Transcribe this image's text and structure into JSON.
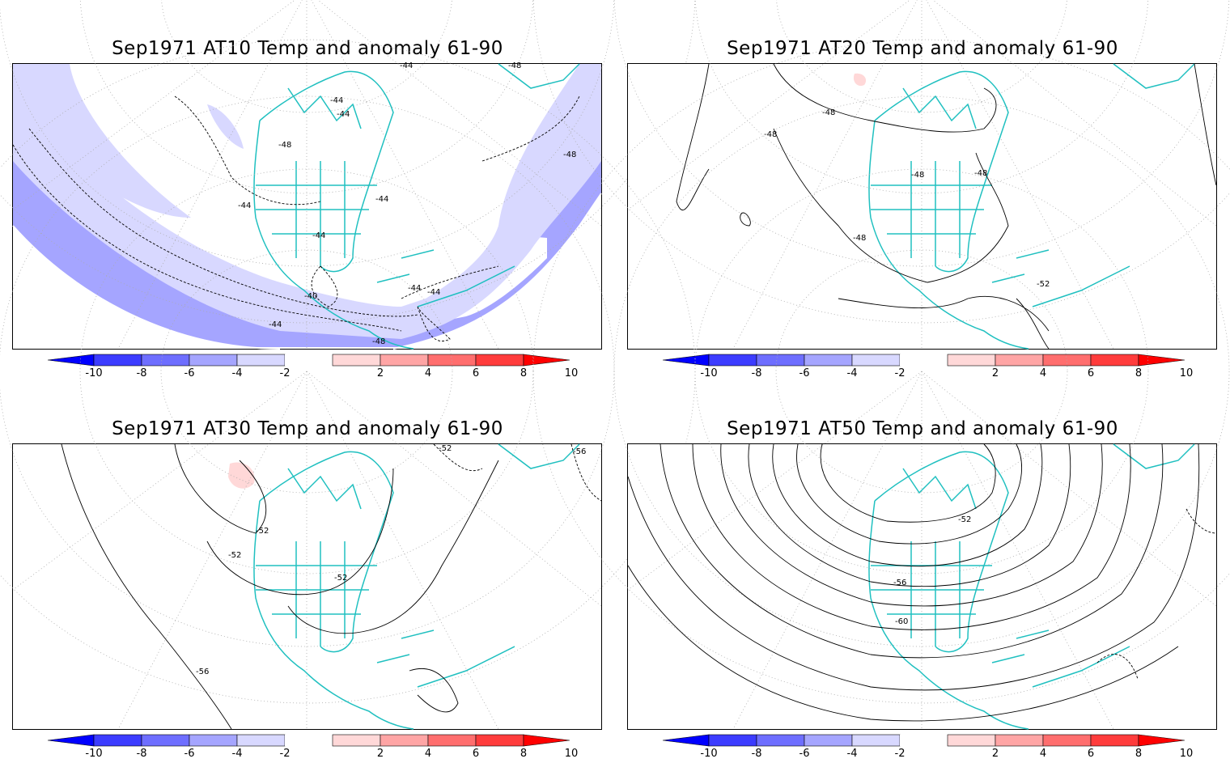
{
  "panels": [
    {
      "title": "Sep1971 AT10 Temp and anomaly 61-90",
      "contour_labels": [
        "-44",
        "-48",
        "-44",
        "-48",
        "-44",
        "-44",
        "-44",
        "-44",
        "-40",
        "-44",
        "-44",
        "-44",
        "-48",
        "-48"
      ]
    },
    {
      "title": "Sep1971 AT20 Temp and anomaly 61-90",
      "contour_labels": [
        "-48",
        "-48",
        "-48",
        "-48",
        "-48",
        "-52"
      ]
    },
    {
      "title": "Sep1971 AT30 Temp and anomaly 61-90",
      "contour_labels": [
        "-52",
        "-56",
        "-52",
        "-52",
        "-52",
        "-56"
      ]
    },
    {
      "title": "Sep1971 AT50 Temp and anomaly 61-90",
      "contour_labels": [
        "-52",
        "-56",
        "-60"
      ]
    }
  ],
  "colorbar": {
    "ticks": [
      "-10",
      "-8",
      "-6",
      "-4",
      "-2",
      "2",
      "4",
      "6",
      "8",
      "10"
    ],
    "colors": [
      "#0000ff",
      "#3c3cff",
      "#6e6eff",
      "#a5a5ff",
      "#d8d8ff",
      "#ffffff",
      "#ffd8d8",
      "#ffa5a5",
      "#ff6e6e",
      "#ff3c3c",
      "#ff0000"
    ]
  },
  "colors": {
    "coast": "#20c0c0",
    "anomaly_neg2": "#d8d8ff",
    "anomaly_neg4": "#a5a5ff",
    "anomaly_pos2": "#ffd8d8"
  }
}
